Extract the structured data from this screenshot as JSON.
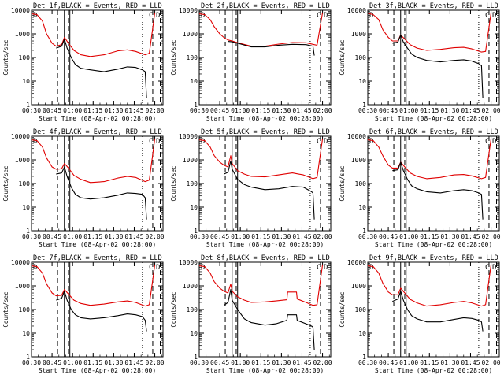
{
  "figure": {
    "ylabel": "Counts/sec",
    "xlabel": "Start Time (08-Apr-02 00:28:00)",
    "x_ticks": [
      "00:30",
      "00:45",
      "01:00",
      "01:15",
      "01:30",
      "01:45",
      "02:00"
    ],
    "y_ticks": [
      "1",
      "10",
      "100",
      "1000",
      "10000"
    ],
    "legend_marks": {
      "left": "D",
      "right_a": "C",
      "right_b": "D"
    },
    "colors": {
      "events": "#000000",
      "lld": "#e00000",
      "axes": "#000000",
      "background": "#ffffff"
    }
  },
  "chart_data": [
    {
      "type": "line",
      "title": "Det 1f,BLACK = Events, RED = LLD",
      "xlim_min": [
        2,
        98
      ],
      "ylim": [
        1,
        10000
      ],
      "yscale": "log",
      "dashed_lines_min": [
        21,
        29,
        90.5,
        96
      ],
      "solid_lines_min": [
        26,
        30
      ],
      "dotted_lines_min": [
        83
      ],
      "series": [
        {
          "name": "LLD",
          "color": "red",
          "x": [
            2,
            6,
            10,
            13,
            17,
            20,
            24,
            26,
            29,
            33,
            38,
            45,
            55,
            65,
            72,
            78,
            85,
            88,
            92
          ],
          "y": [
            7000,
            6500,
            3500,
            1000,
            400,
            300,
            350,
            700,
            400,
            200,
            130,
            110,
            130,
            190,
            210,
            180,
            130,
            150,
            8000
          ]
        },
        {
          "name": "Events",
          "color": "black",
          "x": [
            20,
            24,
            26,
            28,
            31,
            34,
            38,
            45,
            55,
            65,
            72,
            78,
            83,
            85,
            86
          ],
          "y": [
            250,
            300,
            600,
            250,
            100,
            50,
            35,
            30,
            25,
            32,
            40,
            38,
            30,
            25,
            2
          ]
        }
      ]
    },
    {
      "type": "line",
      "title": "Det 2f,BLACK = Events, RED = LLD",
      "xlim_min": [
        2,
        98
      ],
      "ylim": [
        1,
        10000
      ],
      "yscale": "log",
      "dashed_lines_min": [
        21,
        29,
        90.5,
        96
      ],
      "solid_lines_min": [
        26,
        30
      ],
      "dotted_lines_min": [
        83
      ],
      "series": [
        {
          "name": "LLD",
          "color": "red",
          "x": [
            2,
            6,
            10,
            13,
            17,
            20,
            23,
            26,
            30,
            40,
            50,
            60,
            70,
            80,
            86,
            88,
            92
          ],
          "y": [
            7000,
            6500,
            4000,
            2000,
            1000,
            700,
            550,
            500,
            420,
            300,
            300,
            370,
            430,
            420,
            350,
            330,
            8000
          ]
        },
        {
          "name": "Events",
          "color": "black",
          "x": [
            23,
            26,
            30,
            40,
            50,
            60,
            70,
            80,
            85,
            86
          ],
          "y": [
            480,
            460,
            400,
            280,
            280,
            330,
            360,
            350,
            300,
            120
          ]
        }
      ]
    },
    {
      "type": "line",
      "title": "Det 3f,BLACK = Events, RED = LLD",
      "xlim_min": [
        2,
        98
      ],
      "ylim": [
        1,
        10000
      ],
      "yscale": "log",
      "dashed_lines_min": [
        21,
        29,
        90.5,
        96
      ],
      "solid_lines_min": [
        26,
        30
      ],
      "dotted_lines_min": [
        83
      ],
      "series": [
        {
          "name": "LLD",
          "color": "red",
          "x": [
            2,
            6,
            10,
            13,
            17,
            20,
            24,
            26,
            29,
            33,
            38,
            45,
            55,
            65,
            72,
            78,
            85,
            88,
            92
          ],
          "y": [
            7500,
            6500,
            4000,
            1500,
            700,
            500,
            500,
            900,
            600,
            350,
            250,
            200,
            220,
            260,
            270,
            230,
            170,
            180,
            8000
          ]
        },
        {
          "name": "Events",
          "color": "black",
          "x": [
            20,
            24,
            26,
            28,
            31,
            34,
            38,
            45,
            55,
            65,
            72,
            78,
            83,
            85,
            86
          ],
          "y": [
            400,
            450,
            900,
            450,
            250,
            140,
            100,
            75,
            65,
            75,
            80,
            70,
            55,
            45,
            2
          ]
        }
      ]
    },
    {
      "type": "line",
      "title": "Det 4f,BLACK = Events, RED = LLD",
      "xlim_min": [
        2,
        98
      ],
      "ylim": [
        1,
        10000
      ],
      "yscale": "log",
      "dashed_lines_min": [
        21,
        29,
        90.5,
        96
      ],
      "solid_lines_min": [
        26,
        30
      ],
      "dotted_lines_min": [
        83
      ],
      "series": [
        {
          "name": "LLD",
          "color": "red",
          "x": [
            2,
            6,
            10,
            13,
            17,
            20,
            24,
            26,
            29,
            33,
            38,
            45,
            55,
            65,
            72,
            78,
            85,
            88,
            92
          ],
          "y": [
            7000,
            6500,
            3500,
            1200,
            500,
            400,
            420,
            700,
            450,
            220,
            150,
            110,
            120,
            170,
            200,
            180,
            120,
            140,
            8000
          ]
        },
        {
          "name": "Events",
          "color": "black",
          "x": [
            20,
            24,
            26,
            28,
            31,
            34,
            38,
            45,
            55,
            65,
            72,
            78,
            83,
            85,
            86
          ],
          "y": [
            250,
            280,
            500,
            200,
            70,
            35,
            25,
            22,
            25,
            32,
            40,
            38,
            35,
            25,
            3
          ]
        }
      ]
    },
    {
      "type": "line",
      "title": "Det 5f,BLACK = Events, RED = LLD",
      "xlim_min": [
        2,
        98
      ],
      "ylim": [
        1,
        10000
      ],
      "yscale": "log",
      "dashed_lines_min": [
        21,
        29,
        90.5,
        96
      ],
      "solid_lines_min": [
        26,
        30
      ],
      "dotted_lines_min": [
        83
      ],
      "series": [
        {
          "name": "LLD",
          "color": "red",
          "x": [
            2,
            6,
            10,
            13,
            17,
            20,
            23,
            25,
            26,
            30,
            35,
            40,
            50,
            60,
            70,
            78,
            85,
            88,
            92
          ],
          "y": [
            7000,
            6500,
            3500,
            1500,
            800,
            600,
            500,
            1500,
            700,
            350,
            250,
            200,
            190,
            230,
            280,
            230,
            160,
            180,
            8000
          ]
        },
        {
          "name": "Events",
          "color": "black",
          "x": [
            20,
            23,
            25,
            26,
            30,
            35,
            40,
            50,
            60,
            70,
            78,
            84,
            85,
            86
          ],
          "y": [
            250,
            300,
            900,
            400,
            150,
            90,
            70,
            55,
            60,
            75,
            70,
            45,
            40,
            3
          ]
        }
      ]
    },
    {
      "type": "line",
      "title": "Det 6f,BLACK = Events, RED = LLD",
      "xlim_min": [
        2,
        98
      ],
      "ylim": [
        1,
        10000
      ],
      "yscale": "log",
      "dashed_lines_min": [
        21,
        29,
        90.5,
        96
      ],
      "solid_lines_min": [
        26,
        30
      ],
      "dotted_lines_min": [
        83
      ],
      "series": [
        {
          "name": "LLD",
          "color": "red",
          "x": [
            2,
            6,
            10,
            13,
            17,
            20,
            24,
            26,
            29,
            33,
            38,
            45,
            55,
            65,
            72,
            78,
            85,
            88,
            92
          ],
          "y": [
            7000,
            6500,
            3500,
            1500,
            600,
            450,
            450,
            800,
            500,
            280,
            200,
            160,
            180,
            230,
            240,
            210,
            160,
            180,
            8000
          ]
        },
        {
          "name": "Events",
          "color": "black",
          "x": [
            20,
            24,
            26,
            28,
            31,
            34,
            38,
            45,
            55,
            65,
            72,
            78,
            83,
            85,
            86
          ],
          "y": [
            350,
            380,
            800,
            350,
            150,
            80,
            60,
            45,
            40,
            50,
            55,
            50,
            40,
            35,
            3
          ]
        }
      ]
    },
    {
      "type": "line",
      "title": "Det 7f,BLACK = Events, RED = LLD",
      "xlim_min": [
        2,
        98
      ],
      "ylim": [
        1,
        10000
      ],
      "yscale": "log",
      "dashed_lines_min": [
        21,
        29,
        90.5,
        96
      ],
      "solid_lines_min": [
        26,
        30
      ],
      "dotted_lines_min": [
        83
      ],
      "series": [
        {
          "name": "LLD",
          "color": "red",
          "x": [
            2,
            6,
            10,
            13,
            17,
            20,
            24,
            26,
            29,
            33,
            38,
            45,
            55,
            65,
            72,
            78,
            85,
            88,
            92
          ],
          "y": [
            7000,
            6500,
            3500,
            1200,
            500,
            380,
            400,
            700,
            450,
            250,
            180,
            150,
            170,
            210,
            230,
            200,
            140,
            160,
            8000
          ]
        },
        {
          "name": "Events",
          "color": "black",
          "x": [
            20,
            24,
            26,
            28,
            31,
            34,
            38,
            45,
            55,
            65,
            72,
            78,
            83,
            85,
            86
          ],
          "y": [
            250,
            300,
            600,
            250,
            100,
            60,
            45,
            40,
            45,
            55,
            65,
            60,
            50,
            35,
            12
          ]
        }
      ]
    },
    {
      "type": "line",
      "title": "Det 8f,BLACK = Events, RED = LLD",
      "xlim_min": [
        2,
        98
      ],
      "ylim": [
        1,
        10000
      ],
      "yscale": "log",
      "dashed_lines_min": [
        21,
        29,
        90.5,
        96
      ],
      "solid_lines_min": [
        26,
        30
      ],
      "dotted_lines_min": [
        83
      ],
      "series": [
        {
          "name": "LLD",
          "color": "red",
          "x": [
            2,
            6,
            10,
            13,
            17,
            20,
            23,
            25,
            26,
            30,
            35,
            40,
            50,
            58,
            66,
            66.5,
            73,
            73.5,
            80,
            85,
            88,
            92
          ],
          "y": [
            7000,
            6500,
            3500,
            1500,
            800,
            600,
            500,
            1200,
            600,
            350,
            250,
            200,
            210,
            230,
            260,
            550,
            550,
            280,
            200,
            150,
            160,
            8000
          ]
        },
        {
          "name": "Events",
          "color": "black",
          "x": [
            20,
            23,
            25,
            26,
            30,
            35,
            40,
            50,
            58,
            66,
            66.5,
            73,
            73.5,
            80,
            84,
            85,
            86
          ],
          "y": [
            150,
            200,
            700,
            250,
            100,
            40,
            28,
            22,
            25,
            35,
            60,
            60,
            35,
            25,
            20,
            18,
            2
          ]
        }
      ]
    },
    {
      "type": "line",
      "title": "Det 9f,BLACK = Events, RED = LLD",
      "xlim_min": [
        2,
        98
      ],
      "ylim": [
        1,
        10000
      ],
      "yscale": "log",
      "dashed_lines_min": [
        21,
        29,
        90.5,
        96
      ],
      "solid_lines_min": [
        26,
        30
      ],
      "dotted_lines_min": [
        83
      ],
      "series": [
        {
          "name": "LLD",
          "color": "red",
          "x": [
            2,
            6,
            10,
            13,
            17,
            20,
            24,
            26,
            29,
            33,
            38,
            45,
            55,
            65,
            72,
            78,
            85,
            88,
            92
          ],
          "y": [
            7000,
            6500,
            3500,
            1300,
            550,
            420,
            420,
            800,
            500,
            270,
            190,
            140,
            160,
            200,
            220,
            190,
            140,
            160,
            8000
          ]
        },
        {
          "name": "Events",
          "color": "black",
          "x": [
            20,
            24,
            26,
            28,
            31,
            34,
            38,
            45,
            55,
            65,
            72,
            78,
            83,
            85,
            86
          ],
          "y": [
            220,
            280,
            600,
            250,
            100,
            55,
            40,
            30,
            30,
            38,
            45,
            42,
            35,
            30,
            12
          ]
        }
      ]
    }
  ]
}
